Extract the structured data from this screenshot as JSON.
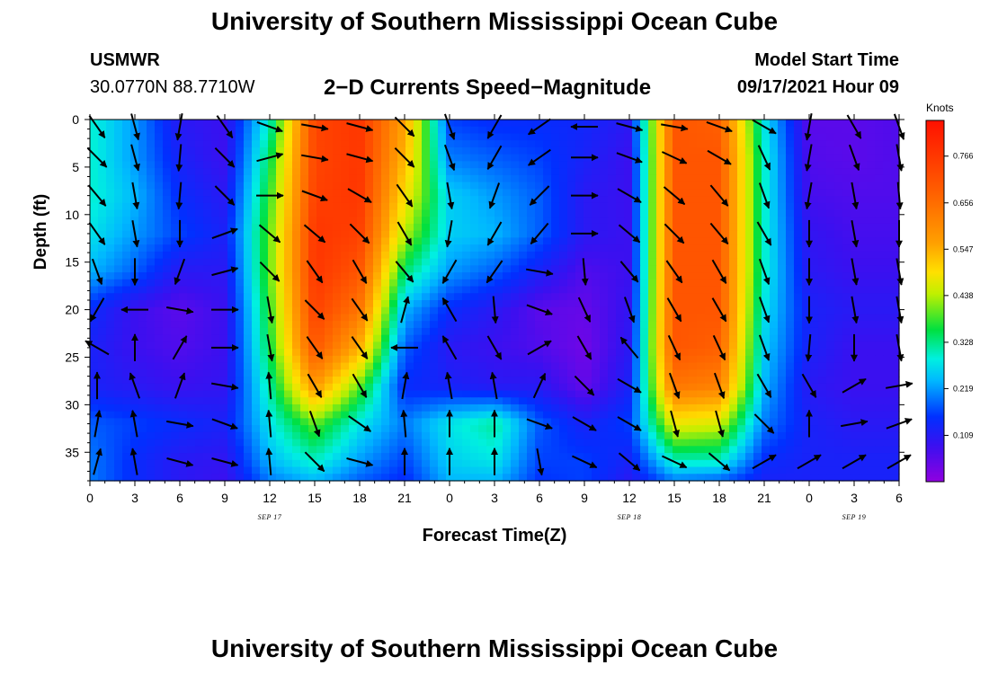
{
  "header": {
    "title": "University of Southern Mississippi Ocean Cube",
    "station": "USMWR",
    "coords": "30.0770N  88.7710W",
    "plot_title": "2−D Currents Speed−Magnitude",
    "model_label": "Model Start Time",
    "model_time": "09/17/2021 Hour 09"
  },
  "footer": {
    "title": "University of Southern Mississippi Ocean Cube"
  },
  "chart_data": {
    "type": "heatmap",
    "title": "2−D Currents Speed−Magnitude",
    "xlabel": "Forecast Time(Z)",
    "ylabel": "Depth (ft)",
    "x_tick_labels": [
      "0",
      "3",
      "6",
      "9",
      "12",
      "15",
      "18",
      "21",
      "0",
      "3",
      "6",
      "9",
      "12",
      "15",
      "18",
      "21",
      "0",
      "3",
      "6"
    ],
    "x_hours": [
      0,
      3,
      6,
      9,
      12,
      15,
      18,
      21,
      24,
      27,
      30,
      33,
      36,
      39,
      42,
      45,
      48,
      51,
      54
    ],
    "date_labels": [
      {
        "text": "SEP 17",
        "hour": 12
      },
      {
        "text": "SEP 18",
        "hour": 36
      },
      {
        "text": "SEP 19",
        "hour": 51
      }
    ],
    "y_ticks": [
      0,
      5,
      10,
      15,
      20,
      25,
      30,
      35
    ],
    "ylim": [
      38,
      0
    ],
    "xlim": [
      0,
      54
    ],
    "colorbar": {
      "unit": "Knots",
      "ticks": [
        0.109,
        0.219,
        0.328,
        0.438,
        0.547,
        0.656,
        0.766
      ],
      "range": [
        0,
        0.85
      ]
    },
    "grid": false,
    "vectors": "black arrows showing current direction",
    "speed_field": {
      "hours": [
        0,
        3,
        6,
        9,
        12,
        15,
        18,
        21,
        24,
        27,
        30,
        33,
        36,
        39,
        42,
        45,
        48,
        51,
        54
      ],
      "depths": [
        0,
        4,
        8,
        12,
        16,
        20,
        24,
        28,
        32,
        36,
        38
      ],
      "values": [
        [
          0.3,
          0.22,
          0.1,
          0.08,
          0.3,
          0.75,
          0.78,
          0.58,
          0.16,
          0.14,
          0.14,
          0.13,
          0.1,
          0.72,
          0.7,
          0.28,
          0.05,
          0.05,
          0.06
        ],
        [
          0.3,
          0.22,
          0.12,
          0.08,
          0.35,
          0.75,
          0.78,
          0.55,
          0.2,
          0.18,
          0.16,
          0.12,
          0.08,
          0.72,
          0.72,
          0.3,
          0.06,
          0.05,
          0.06
        ],
        [
          0.3,
          0.24,
          0.14,
          0.1,
          0.38,
          0.76,
          0.78,
          0.5,
          0.26,
          0.22,
          0.18,
          0.1,
          0.08,
          0.72,
          0.72,
          0.3,
          0.07,
          0.06,
          0.06
        ],
        [
          0.28,
          0.22,
          0.16,
          0.12,
          0.4,
          0.78,
          0.76,
          0.44,
          0.26,
          0.24,
          0.18,
          0.1,
          0.08,
          0.72,
          0.72,
          0.3,
          0.09,
          0.07,
          0.07
        ],
        [
          0.24,
          0.18,
          0.1,
          0.1,
          0.4,
          0.78,
          0.72,
          0.34,
          0.22,
          0.18,
          0.12,
          0.06,
          0.08,
          0.72,
          0.72,
          0.3,
          0.1,
          0.08,
          0.08
        ],
        [
          0.14,
          0.08,
          0.05,
          0.08,
          0.38,
          0.76,
          0.66,
          0.24,
          0.14,
          0.1,
          0.05,
          0.04,
          0.09,
          0.72,
          0.72,
          0.28,
          0.12,
          0.1,
          0.1
        ],
        [
          0.12,
          0.08,
          0.06,
          0.08,
          0.36,
          0.72,
          0.56,
          0.18,
          0.1,
          0.08,
          0.06,
          0.03,
          0.1,
          0.72,
          0.7,
          0.26,
          0.12,
          0.08,
          0.08
        ],
        [
          0.12,
          0.1,
          0.08,
          0.09,
          0.32,
          0.6,
          0.4,
          0.14,
          0.12,
          0.1,
          0.1,
          0.04,
          0.12,
          0.66,
          0.64,
          0.24,
          0.1,
          0.08,
          0.08
        ],
        [
          0.18,
          0.16,
          0.14,
          0.12,
          0.28,
          0.4,
          0.28,
          0.2,
          0.28,
          0.32,
          0.18,
          0.12,
          0.16,
          0.48,
          0.46,
          0.2,
          0.12,
          0.1,
          0.1
        ],
        [
          0.2,
          0.14,
          0.1,
          0.09,
          0.24,
          0.3,
          0.22,
          0.16,
          0.26,
          0.28,
          0.16,
          0.16,
          0.12,
          0.3,
          0.3,
          0.14,
          0.12,
          0.12,
          0.12
        ],
        [
          0.2,
          0.14,
          0.1,
          0.08,
          0.2,
          0.24,
          0.18,
          0.14,
          0.24,
          0.24,
          0.15,
          0.16,
          0.1,
          0.2,
          0.18,
          0.12,
          0.12,
          0.12,
          0.12
        ]
      ]
    },
    "arrow_field": {
      "hours": [
        0,
        3,
        6,
        9,
        12,
        15,
        18,
        21,
        24,
        27,
        30,
        33,
        36,
        39,
        42,
        45,
        48,
        51,
        54
      ],
      "depths": [
        0,
        4,
        8,
        12,
        16,
        20,
        24,
        28,
        32,
        36
      ],
      "angles_deg_clockwise_from_east": [
        [
          55,
          75,
          100,
          55,
          20,
          10,
          15,
          45,
          70,
          120,
          145,
          180,
          15,
          10,
          20,
          30,
          100,
          60,
          70
        ],
        [
          45,
          75,
          95,
          45,
          -15,
          10,
          15,
          45,
          70,
          120,
          145,
          0,
          20,
          25,
          30,
          65,
          100,
          70,
          80
        ],
        [
          50,
          80,
          95,
          45,
          0,
          20,
          30,
          55,
          80,
          110,
          135,
          0,
          30,
          40,
          50,
          70,
          100,
          80,
          85
        ],
        [
          55,
          80,
          90,
          -20,
          40,
          40,
          45,
          60,
          100,
          120,
          130,
          0,
          40,
          45,
          50,
          60,
          90,
          80,
          90
        ],
        [
          70,
          90,
          110,
          -15,
          45,
          55,
          60,
          50,
          120,
          125,
          10,
          85,
          50,
          55,
          60,
          70,
          90,
          80,
          80
        ],
        [
          120,
          180,
          10,
          0,
          80,
          45,
          55,
          -75,
          -120,
          85,
          20,
          65,
          70,
          60,
          60,
          70,
          90,
          80,
          80
        ],
        [
          -150,
          -90,
          -60,
          0,
          80,
          55,
          55,
          180,
          -120,
          60,
          -30,
          60,
          -130,
          65,
          65,
          70,
          95,
          90,
          80
        ],
        [
          -90,
          -110,
          -70,
          10,
          -95,
          60,
          60,
          -80,
          -100,
          -100,
          -65,
          45,
          30,
          70,
          70,
          60,
          60,
          -30,
          -10
        ],
        [
          -80,
          -100,
          10,
          20,
          -95,
          70,
          35,
          -95,
          -90,
          -90,
          20,
          30,
          30,
          75,
          75,
          45,
          -90,
          -10,
          -20
        ],
        [
          -75,
          -100,
          15,
          15,
          -95,
          45,
          15,
          -90,
          -90,
          -90,
          80,
          25,
          40,
          25,
          40,
          -30,
          -30,
          -30,
          -30
        ]
      ]
    }
  }
}
